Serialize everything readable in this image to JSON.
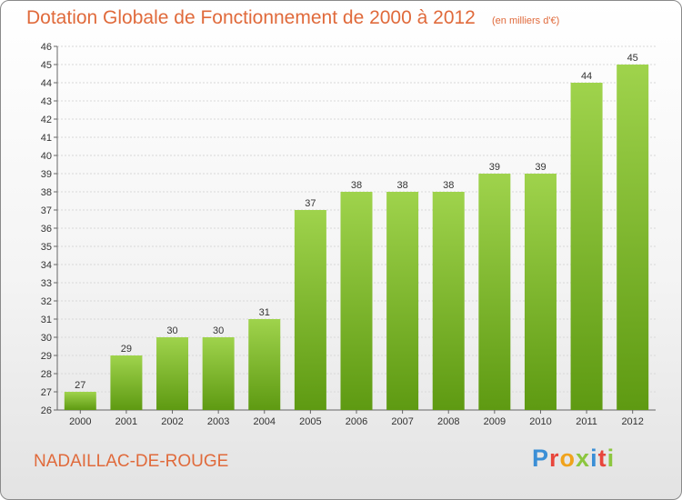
{
  "header": {
    "title": "Dotation Globale de Fonctionnement de 2000 à 2012",
    "unit_note": "(en milliers d'€)"
  },
  "footer": {
    "commune": "NADAILLAC-DE-ROUGE",
    "logo_text": "Proxiti",
    "logo_colors": [
      "#3b8fd6",
      "#e8463c",
      "#f0a31c",
      "#8cc63f",
      "#3b8fd6",
      "#e8463c",
      "#8cc63f"
    ]
  },
  "colors": {
    "bar_top": "#9fd34c",
    "bar_bottom": "#5e9a12",
    "grid": "#d8d8d8",
    "title": "#e06a3b"
  },
  "chart_data": {
    "type": "bar",
    "title": "Dotation Globale de Fonctionnement de 2000 à 2012",
    "subtitle": "(en milliers d'€)",
    "xlabel": "",
    "ylabel": "",
    "categories": [
      "2000",
      "2001",
      "2002",
      "2003",
      "2004",
      "2005",
      "2006",
      "2007",
      "2008",
      "2009",
      "2010",
      "2011",
      "2012"
    ],
    "values": [
      27,
      29,
      30,
      30,
      31,
      37,
      38,
      38,
      38,
      39,
      39,
      44,
      45
    ],
    "ylim": [
      26,
      46
    ],
    "yticks": [
      26,
      27,
      28,
      29,
      30,
      31,
      32,
      33,
      34,
      35,
      36,
      37,
      38,
      39,
      40,
      41,
      42,
      43,
      44,
      45,
      46
    ],
    "grid": true,
    "data_labels": true
  }
}
